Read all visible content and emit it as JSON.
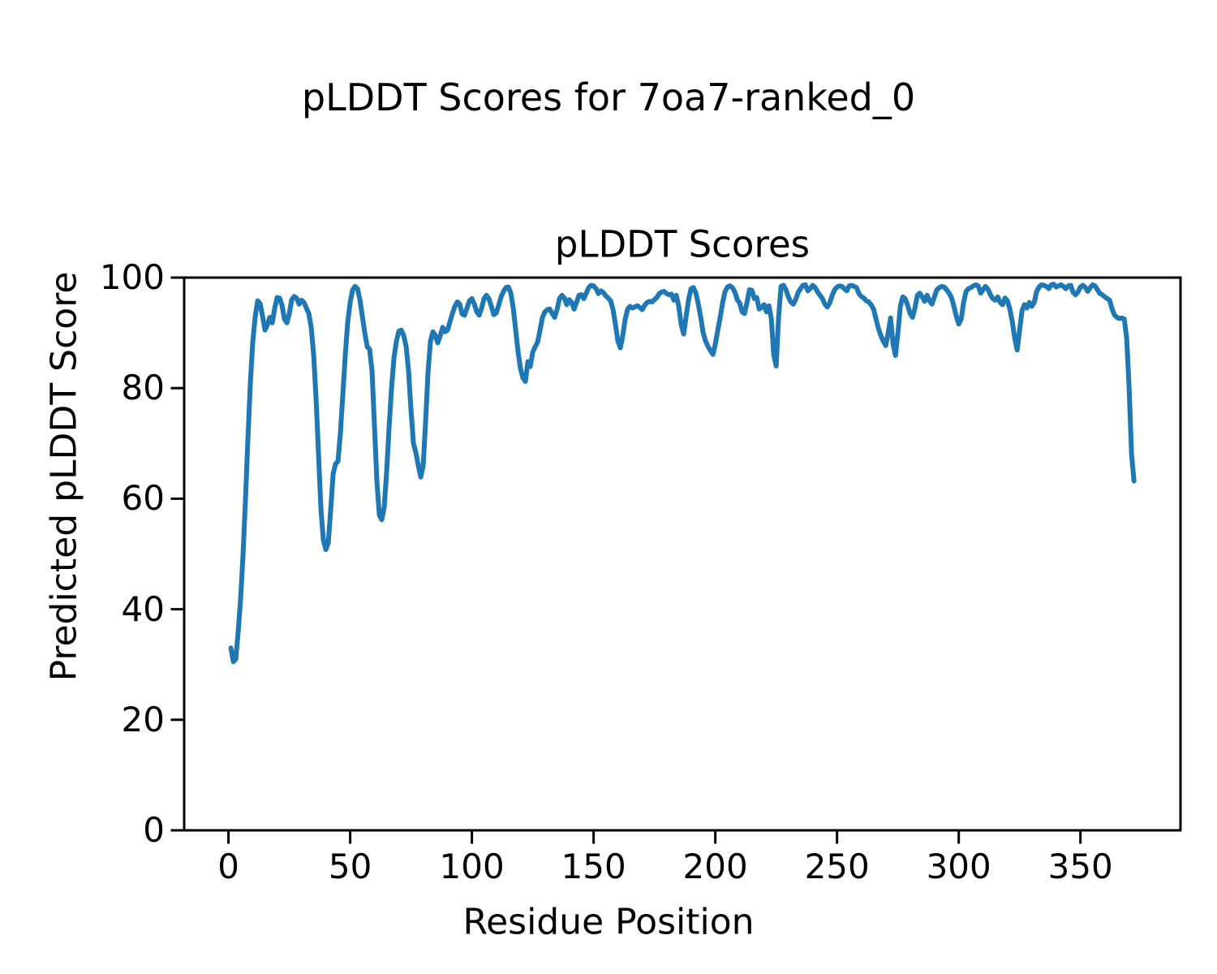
{
  "figure": {
    "suptitle": "pLDDT Scores for 7oa7-ranked_0",
    "background": "#ffffff",
    "spine_color": "#000000"
  },
  "chart_data": {
    "type": "line",
    "title": "pLDDT Scores",
    "xlabel": "Residue Position",
    "ylabel": "Predicted pLDDT Score",
    "line_color": "#1f77b4",
    "grid": false,
    "legend": null,
    "xlim": [
      -18.2,
      391.1
    ],
    "ylim": [
      0,
      100
    ],
    "x_ticks": [
      0,
      50,
      100,
      150,
      200,
      250,
      300,
      350
    ],
    "y_ticks": [
      0,
      20,
      40,
      60,
      80,
      100
    ],
    "series": [
      {
        "name": "pLDDT",
        "x_start": 1,
        "x_step": 1,
        "values": [
          33,
          30.5,
          31,
          36,
          42,
          50,
          60,
          71,
          81,
          88.5,
          93,
          95.8,
          95.3,
          93,
          90.5,
          91.5,
          92.8,
          91.8,
          94.5,
          96.4,
          96.3,
          95,
          92.5,
          91.8,
          93.5,
          96,
          96.6,
          96.3,
          95.2,
          95.9,
          95.5,
          94.5,
          93.5,
          91,
          86,
          78,
          68,
          58,
          52.5,
          50.8,
          52,
          58,
          64.5,
          66.3,
          66.8,
          72,
          79,
          86,
          92,
          95.5,
          97.8,
          98.4,
          98,
          96,
          93,
          90,
          87.5,
          87,
          83,
          73,
          63,
          57,
          56.2,
          58.5,
          65,
          73,
          80,
          85.5,
          88.5,
          90.3,
          90.5,
          89.5,
          87.5,
          83,
          76,
          70,
          68.3,
          66,
          63.9,
          66,
          74,
          83,
          88.5,
          90.2,
          89.5,
          88.2,
          89.5,
          91,
          90.2,
          90.5,
          92,
          93.5,
          94.8,
          95.6,
          95.2,
          93.4,
          93.2,
          94.5,
          95.8,
          96.2,
          95.2,
          93.8,
          93.2,
          94.5,
          96.2,
          96.8,
          96.2,
          94.8,
          93.3,
          93.6,
          95,
          96.5,
          97.5,
          98.2,
          98.3,
          97.2,
          94.5,
          90.5,
          86.5,
          83.5,
          81.8,
          81.2,
          84.8,
          83.9,
          86.5,
          87.5,
          88.3,
          90.5,
          92.8,
          93.8,
          94.2,
          94.3,
          93.5,
          92.8,
          94.2,
          96.2,
          96.8,
          96.3,
          95.1,
          96,
          95.5,
          94.3,
          95.5,
          96.8,
          96.9,
          96.2,
          97.2,
          98.2,
          98.6,
          98.5,
          98,
          97.1,
          97.6,
          97.3,
          96.7,
          96.3,
          95.8,
          94.2,
          91.5,
          88.5,
          87.3,
          89.5,
          92.5,
          94.3,
          94.8,
          94.5,
          94.7,
          94.9,
          94.6,
          94.2,
          95,
          95.5,
          95.7,
          95.6,
          96,
          96.4,
          97.1,
          97.4,
          97.5,
          97.1,
          96.9,
          97,
          95.9,
          96.8,
          94.8,
          91.5,
          89.8,
          93,
          96,
          98,
          98.2,
          97.2,
          95.2,
          92.8,
          90,
          88.5,
          87.5,
          86.8,
          86.1,
          88,
          90.5,
          92.8,
          95.5,
          97.5,
          98.3,
          98.5,
          98.2,
          97.4,
          96,
          95.4,
          93.8,
          93.5,
          95.5,
          97.8,
          97.7,
          96.2,
          96.4,
          94.3,
          94.6,
          95.1,
          93.8,
          94.9,
          92.5,
          86,
          84,
          93,
          98.4,
          98.6,
          97.8,
          96.5,
          95.6,
          95.2,
          96,
          97.3,
          98,
          98.6,
          98.7,
          97.6,
          98,
          98.6,
          98.2,
          97.4,
          96.8,
          96.2,
          95.2,
          94.7,
          95.4,
          96.8,
          97.8,
          98.3,
          98.5,
          98.4,
          98,
          97.6,
          98.5,
          98.6,
          98.4,
          98.2,
          97.1,
          96.6,
          96.3,
          95.8,
          95.6,
          95.1,
          94.3,
          92.5,
          90.8,
          89.5,
          88.5,
          87.7,
          90,
          92.7,
          88,
          85.9,
          90,
          94.8,
          96.5,
          96.2,
          95,
          93.5,
          92.8,
          94.5,
          96.8,
          97.2,
          96.5,
          95.7,
          96.8,
          95.8,
          95.2,
          96.5,
          97.8,
          98.2,
          98.4,
          98.3,
          97.8,
          97.2,
          96.4,
          94.8,
          93,
          91.6,
          92.5,
          95.5,
          97.5,
          98,
          98.2,
          98.5,
          98.7,
          98.5,
          97.2,
          97.8,
          98.4,
          97.9,
          96.9,
          96.2,
          95.9,
          96.5,
          95.5,
          95.1,
          96.3,
          95.8,
          94.3,
          92,
          89,
          86.9,
          90.5,
          94,
          95.1,
          94.5,
          95.5,
          94.8,
          95.5,
          97.5,
          98.3,
          98.7,
          98.6,
          98.4,
          98,
          98.7,
          98.8,
          98.3,
          98.5,
          98.7,
          98.4,
          98,
          98.5,
          98.6,
          97.3,
          96.9,
          97.4,
          98.3,
          98.6,
          98.2,
          97.5,
          98.2,
          98.7,
          98.5,
          97.8,
          97.1,
          96.9,
          96.5,
          96.2,
          95.9,
          94.3,
          93.2,
          92.8,
          92.6,
          92.7,
          92.5,
          89,
          80,
          68,
          63.2
        ]
      }
    ]
  }
}
